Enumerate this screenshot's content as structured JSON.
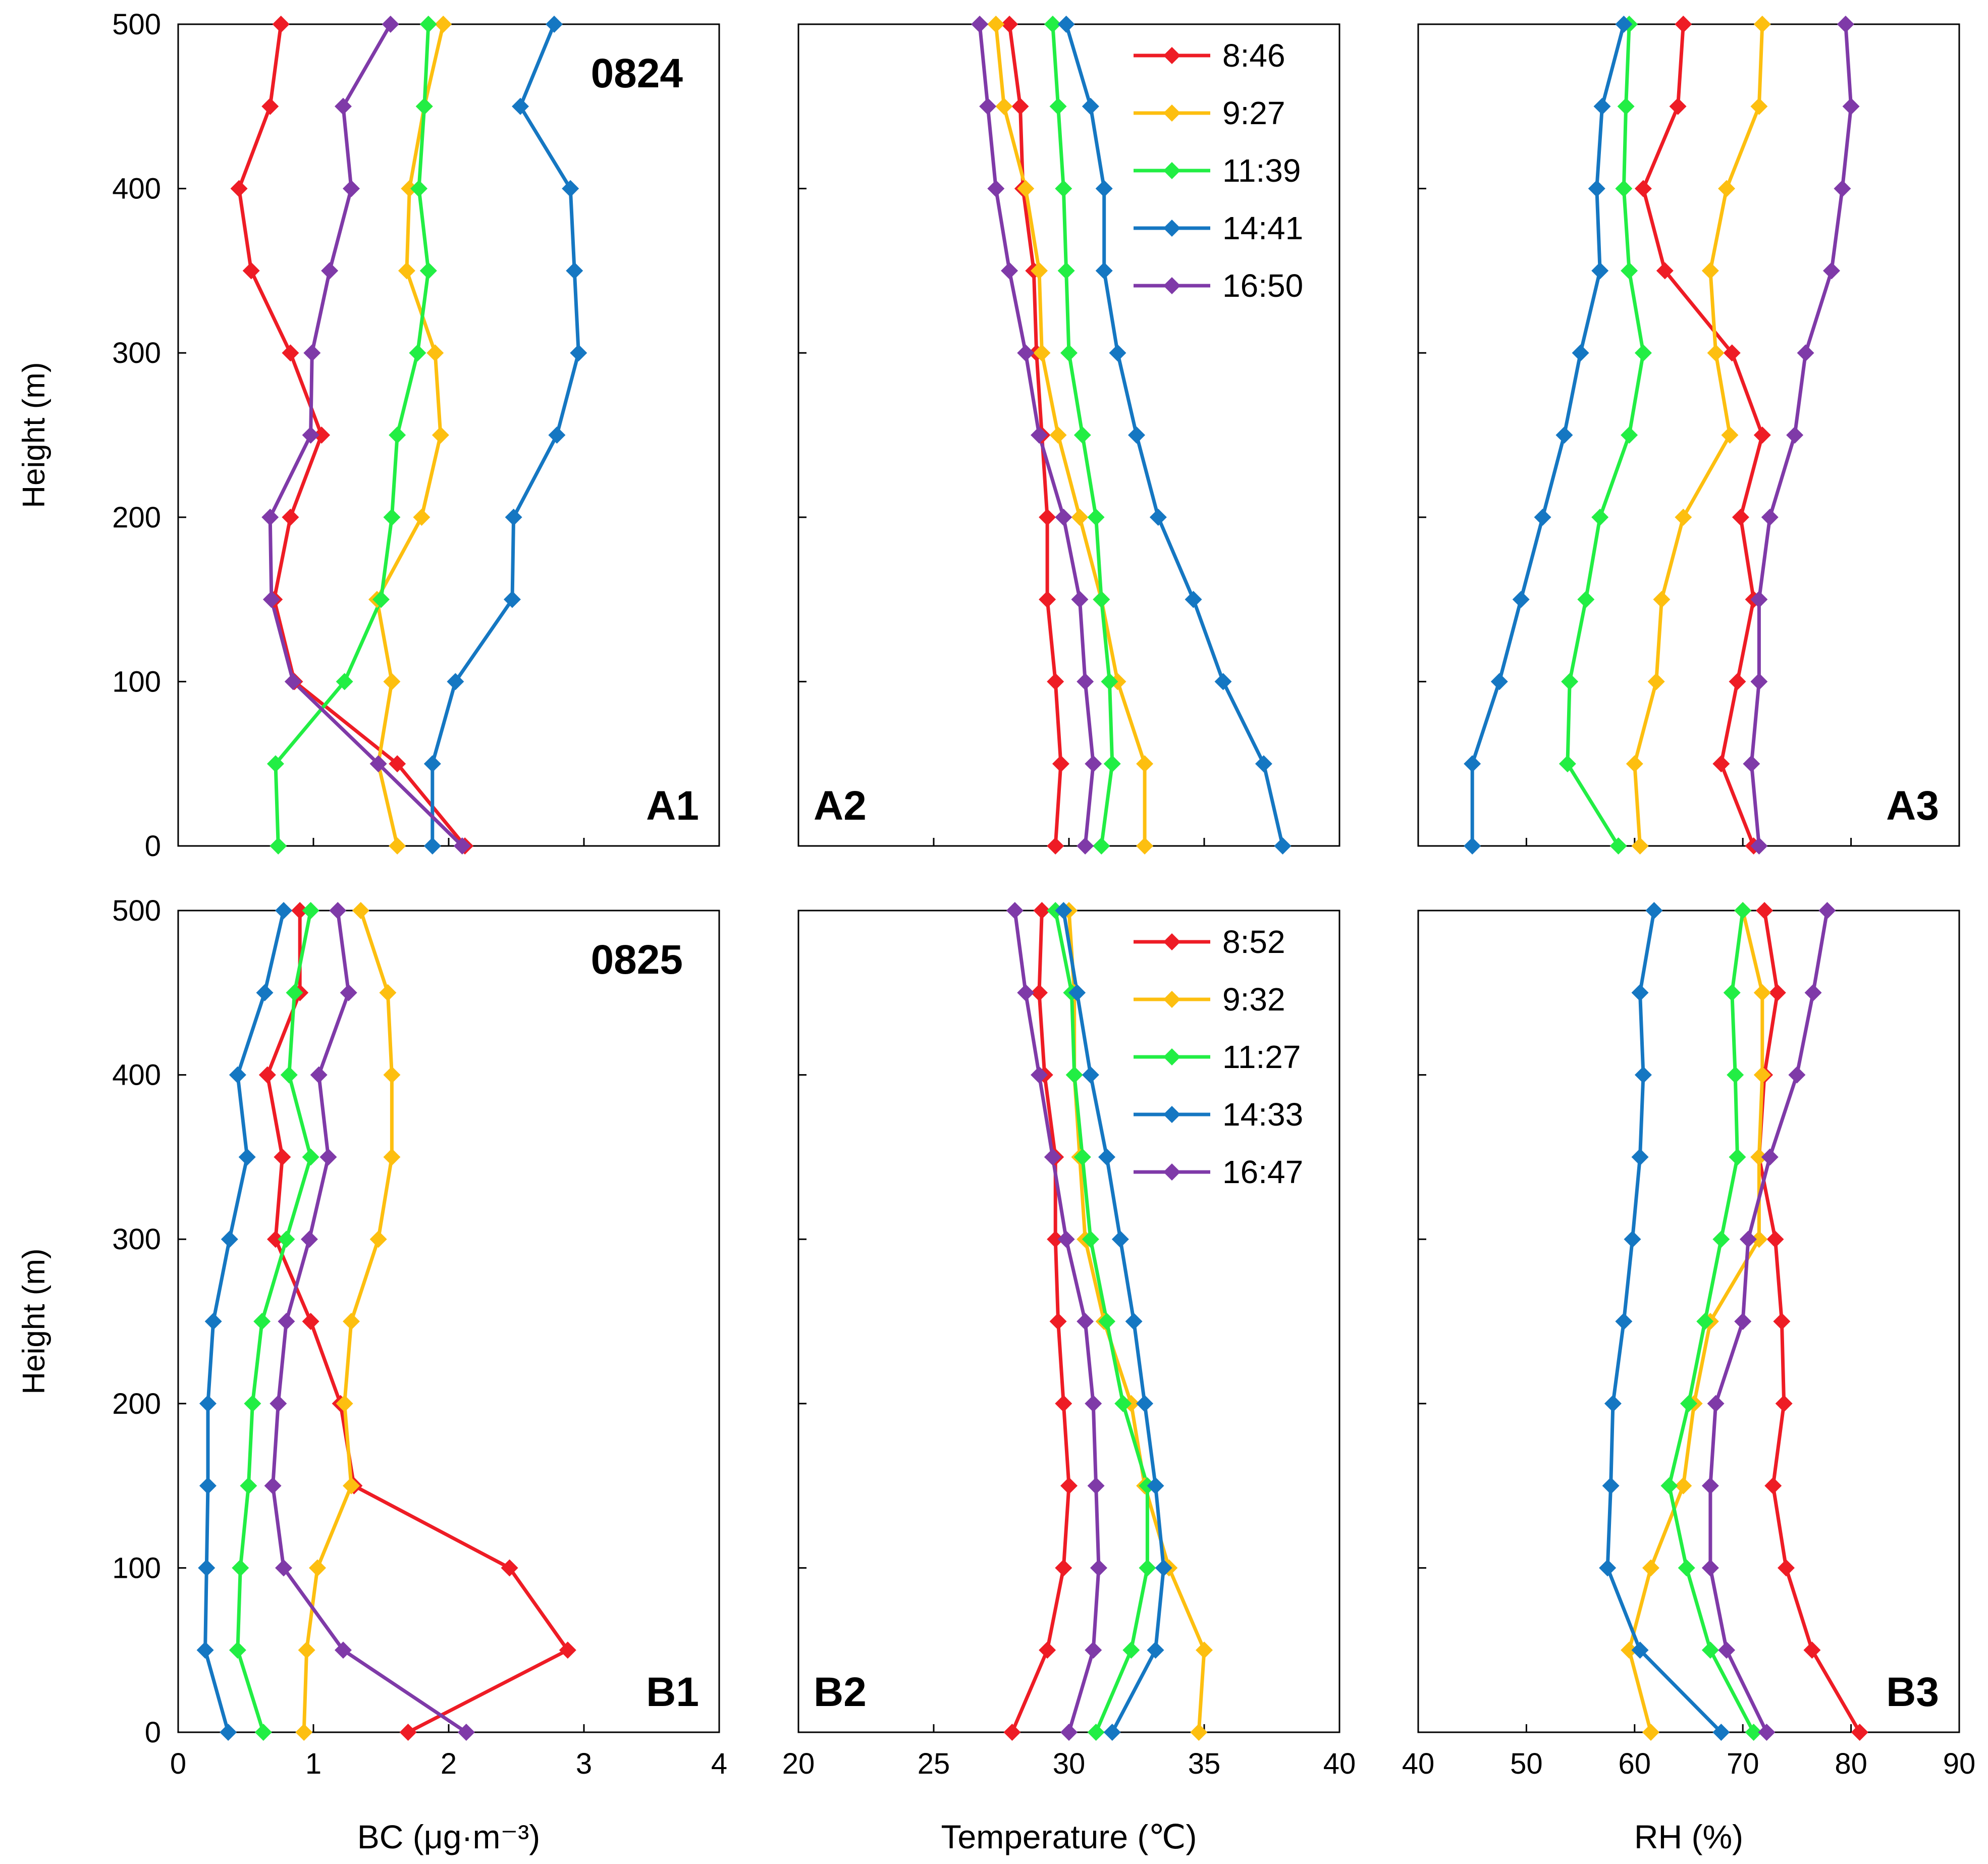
{
  "colors": {
    "red": "#ee1c25",
    "orange": "#fdbf10",
    "green": "#22ee44",
    "blue": "#1577c2",
    "purple": "#7f3aa8"
  },
  "chart_data": [
    {
      "type": "line",
      "panel": "A1",
      "date_label": "0824",
      "xlabel": "",
      "ylabel": "Height (m)",
      "xlim": [
        0,
        4
      ],
      "xticks": [
        "0",
        "1",
        "2",
        "3",
        "4"
      ],
      "show_xticks": false,
      "ylim": [
        0,
        500
      ],
      "yticks": [
        "0",
        "100",
        "200",
        "300",
        "400",
        "500"
      ],
      "show_yticks": true,
      "heights": [
        0,
        50,
        100,
        150,
        200,
        250,
        300,
        350,
        400,
        450,
        500
      ],
      "series": [
        {
          "name": "8:46",
          "color": "red",
          "values": [
            2.12,
            1.62,
            0.86,
            0.71,
            0.83,
            1.06,
            0.83,
            0.54,
            0.45,
            0.68,
            0.76
          ]
        },
        {
          "name": "9:27",
          "color": "orange",
          "values": [
            1.62,
            1.48,
            1.58,
            1.47,
            1.8,
            1.94,
            1.9,
            1.69,
            1.71,
            1.82,
            1.96
          ]
        },
        {
          "name": "11:39",
          "color": "green",
          "values": [
            0.74,
            0.72,
            1.23,
            1.5,
            1.58,
            1.62,
            1.77,
            1.85,
            1.78,
            1.82,
            1.85
          ]
        },
        {
          "name": "14:41",
          "color": "blue",
          "values": [
            1.88,
            1.88,
            2.05,
            2.47,
            2.48,
            2.8,
            2.96,
            2.93,
            2.9,
            2.53,
            2.78
          ]
        },
        {
          "name": "16:50",
          "color": "purple",
          "values": [
            2.1,
            1.48,
            0.85,
            0.69,
            0.68,
            0.98,
            0.99,
            1.12,
            1.28,
            1.22,
            1.57
          ]
        }
      ]
    },
    {
      "type": "line",
      "panel": "A2",
      "xlabel": "",
      "ylabel": "",
      "xlim": [
        20,
        40
      ],
      "xticks": [
        "20",
        "25",
        "30",
        "35",
        "40"
      ],
      "show_xticks": false,
      "ylim": [
        0,
        500
      ],
      "yticks": [
        "0",
        "100",
        "200",
        "300",
        "400",
        "500"
      ],
      "show_yticks": false,
      "heights": [
        0,
        50,
        100,
        150,
        200,
        250,
        300,
        350,
        400,
        450,
        500
      ],
      "legend": [
        "8:46",
        "9:27",
        "11:39",
        "14:41",
        "16:50"
      ],
      "series": [
        {
          "name": "8:46",
          "color": "red",
          "values": [
            29.5,
            29.7,
            29.5,
            29.2,
            29.2,
            29.0,
            28.8,
            28.7,
            28.3,
            28.2,
            27.8
          ]
        },
        {
          "name": "9:27",
          "color": "orange",
          "values": [
            32.8,
            32.8,
            31.8,
            31.2,
            30.4,
            29.6,
            29.0,
            28.9,
            28.4,
            27.6,
            27.3
          ]
        },
        {
          "name": "11:39",
          "color": "green",
          "values": [
            31.2,
            31.6,
            31.5,
            31.2,
            31.0,
            30.5,
            30.0,
            29.9,
            29.8,
            29.6,
            29.4
          ]
        },
        {
          "name": "14:41",
          "color": "blue",
          "values": [
            37.9,
            37.2,
            35.7,
            34.6,
            33.3,
            32.5,
            31.8,
            31.3,
            31.3,
            30.8,
            29.9
          ]
        },
        {
          "name": "16:50",
          "color": "purple",
          "values": [
            30.6,
            30.9,
            30.6,
            30.4,
            29.8,
            28.9,
            28.4,
            27.8,
            27.3,
            27.0,
            26.7
          ]
        }
      ]
    },
    {
      "type": "line",
      "panel": "A3",
      "xlabel": "",
      "ylabel": "",
      "xlim": [
        40,
        90
      ],
      "xticks": [
        "40",
        "50",
        "60",
        "70",
        "80",
        "90"
      ],
      "show_xticks": false,
      "ylim": [
        0,
        500
      ],
      "yticks": [
        "0",
        "100",
        "200",
        "300",
        "400",
        "500"
      ],
      "show_yticks": false,
      "heights": [
        0,
        50,
        100,
        150,
        200,
        250,
        300,
        350,
        400,
        450,
        500
      ],
      "series": [
        {
          "name": "8:46",
          "color": "red",
          "values": [
            71.0,
            68.0,
            69.5,
            71.0,
            69.8,
            71.8,
            69.0,
            62.8,
            60.8,
            64.0,
            64.5
          ]
        },
        {
          "name": "9:27",
          "color": "orange",
          "values": [
            60.5,
            60.0,
            62.0,
            62.5,
            64.5,
            68.8,
            67.5,
            67.0,
            68.5,
            71.5,
            71.8
          ]
        },
        {
          "name": "11:39",
          "color": "green",
          "values": [
            58.5,
            53.8,
            54.0,
            55.5,
            56.8,
            59.5,
            60.8,
            59.5,
            59.0,
            59.2,
            59.5
          ]
        },
        {
          "name": "14:41",
          "color": "blue",
          "values": [
            45.0,
            45.0,
            47.5,
            49.5,
            51.5,
            53.5,
            55.0,
            56.8,
            56.5,
            57.0,
            59.0
          ]
        },
        {
          "name": "16:50",
          "color": "purple",
          "values": [
            71.5,
            70.8,
            71.5,
            71.5,
            72.5,
            74.8,
            75.8,
            78.2,
            79.2,
            80.0,
            79.5
          ]
        }
      ]
    },
    {
      "type": "line",
      "panel": "B1",
      "date_label": "0825",
      "xlabel": "BC (μg·m⁻³)",
      "ylabel": "Height (m)",
      "xlim": [
        0,
        4
      ],
      "xticks": [
        "0",
        "1",
        "2",
        "3",
        "4"
      ],
      "show_xticks": true,
      "ylim": [
        0,
        500
      ],
      "yticks": [
        "0",
        "100",
        "200",
        "300",
        "400",
        "500"
      ],
      "show_yticks": true,
      "heights": [
        0,
        50,
        100,
        150,
        200,
        250,
        300,
        350,
        400,
        450,
        500
      ],
      "series": [
        {
          "name": "8:52",
          "color": "red",
          "values": [
            1.7,
            2.88,
            2.45,
            1.3,
            1.2,
            0.98,
            0.72,
            0.77,
            0.66,
            0.9,
            0.9
          ]
        },
        {
          "name": "9:32",
          "color": "orange",
          "values": [
            0.93,
            0.95,
            1.03,
            1.28,
            1.23,
            1.28,
            1.48,
            1.58,
            1.58,
            1.55,
            1.35
          ]
        },
        {
          "name": "11:27",
          "color": "green",
          "values": [
            0.63,
            0.44,
            0.46,
            0.52,
            0.55,
            0.62,
            0.8,
            0.98,
            0.82,
            0.86,
            0.98
          ]
        },
        {
          "name": "14:33",
          "color": "blue",
          "values": [
            0.37,
            0.2,
            0.21,
            0.22,
            0.22,
            0.26,
            0.38,
            0.51,
            0.44,
            0.64,
            0.78
          ]
        },
        {
          "name": "16:47",
          "color": "purple",
          "values": [
            2.13,
            1.22,
            0.78,
            0.7,
            0.74,
            0.8,
            0.97,
            1.11,
            1.04,
            1.26,
            1.18
          ]
        }
      ]
    },
    {
      "type": "line",
      "panel": "B2",
      "xlabel": "Temperature (℃)",
      "ylabel": "",
      "xlim": [
        20,
        40
      ],
      "xticks": [
        "20",
        "25",
        "30",
        "35",
        "40"
      ],
      "show_xticks": true,
      "ylim": [
        0,
        500
      ],
      "yticks": [
        "0",
        "100",
        "200",
        "300",
        "400",
        "500"
      ],
      "show_yticks": false,
      "heights": [
        0,
        50,
        100,
        150,
        200,
        250,
        300,
        350,
        400,
        450,
        500
      ],
      "legend": [
        "8:52",
        "9:32",
        "11:27",
        "14:33",
        "16:47"
      ],
      "series": [
        {
          "name": "8:52",
          "color": "red",
          "values": [
            27.9,
            29.2,
            29.8,
            30.0,
            29.8,
            29.6,
            29.5,
            29.5,
            29.1,
            28.9,
            29.0
          ]
        },
        {
          "name": "9:32",
          "color": "orange",
          "values": [
            34.8,
            35.0,
            33.7,
            32.8,
            32.3,
            31.3,
            30.6,
            30.4,
            30.2,
            30.2,
            30.0
          ]
        },
        {
          "name": "11:27",
          "color": "green",
          "values": [
            31.0,
            32.3,
            32.9,
            32.9,
            32.0,
            31.4,
            30.8,
            30.5,
            30.2,
            30.1,
            29.5
          ]
        },
        {
          "name": "14:33",
          "color": "blue",
          "values": [
            31.6,
            33.2,
            33.5,
            33.2,
            32.8,
            32.4,
            31.9,
            31.4,
            30.8,
            30.3,
            29.8
          ]
        },
        {
          "name": "16:47",
          "color": "purple",
          "values": [
            30.0,
            30.9,
            31.1,
            31.0,
            30.9,
            30.6,
            29.9,
            29.4,
            28.9,
            28.4,
            28.0
          ]
        }
      ]
    },
    {
      "type": "line",
      "panel": "B3",
      "xlabel": "RH (%)",
      "ylabel": "",
      "xlim": [
        40,
        90
      ],
      "xticks": [
        "40",
        "50",
        "60",
        "70",
        "80",
        "90"
      ],
      "show_xticks": true,
      "ylim": [
        0,
        500
      ],
      "yticks": [
        "0",
        "100",
        "200",
        "300",
        "400",
        "500"
      ],
      "show_yticks": false,
      "heights": [
        0,
        50,
        100,
        150,
        200,
        250,
        300,
        350,
        400,
        450,
        500
      ],
      "series": [
        {
          "name": "8:52",
          "color": "red",
          "values": [
            80.8,
            76.4,
            74.0,
            72.8,
            73.8,
            73.6,
            73.0,
            71.5,
            72.0,
            73.2,
            72.0
          ]
        },
        {
          "name": "9:32",
          "color": "orange",
          "values": [
            61.5,
            59.5,
            61.5,
            64.5,
            65.5,
            67.0,
            71.5,
            71.5,
            71.8,
            71.8,
            70.0
          ]
        },
        {
          "name": "11:27",
          "color": "green",
          "values": [
            71.0,
            67.0,
            64.8,
            63.2,
            65.0,
            66.5,
            68.0,
            69.5,
            69.3,
            69.0,
            70.0
          ]
        },
        {
          "name": "14:33",
          "color": "blue",
          "values": [
            68.0,
            60.5,
            57.5,
            57.8,
            58.0,
            59.0,
            59.8,
            60.5,
            60.8,
            60.5,
            61.8
          ]
        },
        {
          "name": "16:47",
          "color": "purple",
          "values": [
            72.2,
            68.5,
            67.0,
            67.0,
            67.5,
            70.0,
            70.5,
            72.5,
            75.0,
            76.5,
            77.8
          ]
        }
      ]
    }
  ]
}
